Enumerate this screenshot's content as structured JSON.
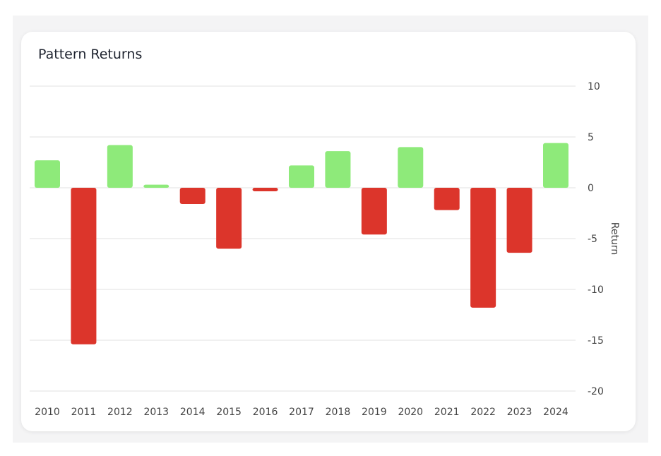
{
  "chart_data": {
    "type": "bar",
    "title": "Pattern Returns",
    "xlabel": "",
    "ylabel": "Return",
    "ylim": [
      -20,
      10
    ],
    "yticks": [
      10,
      5,
      0,
      -5,
      -10,
      -15,
      -20
    ],
    "grid": true,
    "legend": "none",
    "categories": [
      "2010",
      "2011",
      "2012",
      "2013",
      "2014",
      "2015",
      "2016",
      "2017",
      "2018",
      "2019",
      "2020",
      "2021",
      "2022",
      "2023",
      "2024"
    ],
    "values": [
      2.7,
      -15.4,
      4.2,
      0.3,
      -1.6,
      -6.0,
      -0.35,
      2.2,
      3.6,
      -4.6,
      4.0,
      -2.2,
      -11.8,
      -6.4,
      4.4
    ],
    "colors": {
      "positive": "#8eea7a",
      "negative": "#dc352b",
      "grid": "#e8e8e8"
    }
  }
}
